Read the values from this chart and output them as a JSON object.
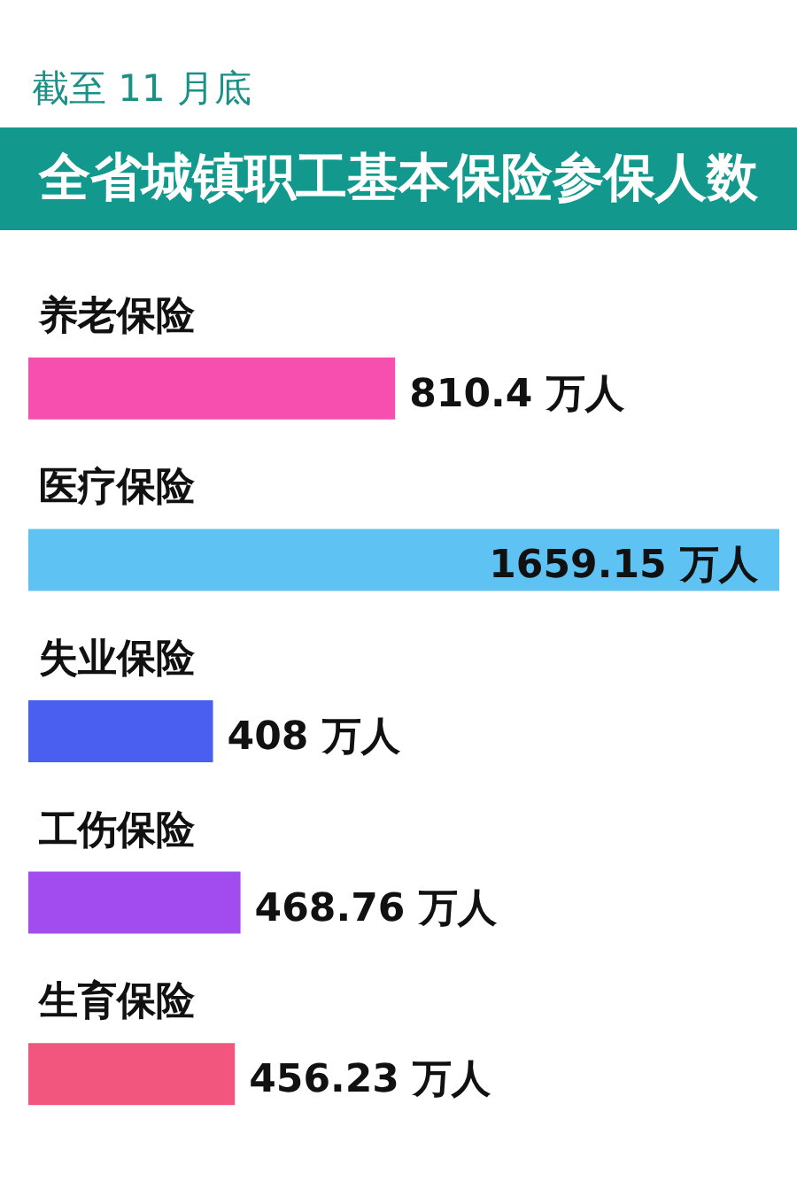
{
  "chart_data": {
    "type": "bar",
    "orientation": "horizontal",
    "subtitle": "截至 11 月底",
    "title": "全省城镇职工基本保险参保人数",
    "categories": [
      "养老保险",
      "医疗保险",
      "失业保险",
      "工伤保险",
      "生育保险"
    ],
    "values": [
      810.4,
      1659.15,
      408,
      468.76,
      456.23
    ],
    "colors": [
      "#f74fb0",
      "#5ec3f2",
      "#4a5ff0",
      "#a24cf0",
      "#f2557e"
    ],
    "value_labels": [
      "810.4 万人",
      "1659.15 万人",
      "408 万人",
      "468.76 万人",
      "456.23 万人"
    ]
  }
}
